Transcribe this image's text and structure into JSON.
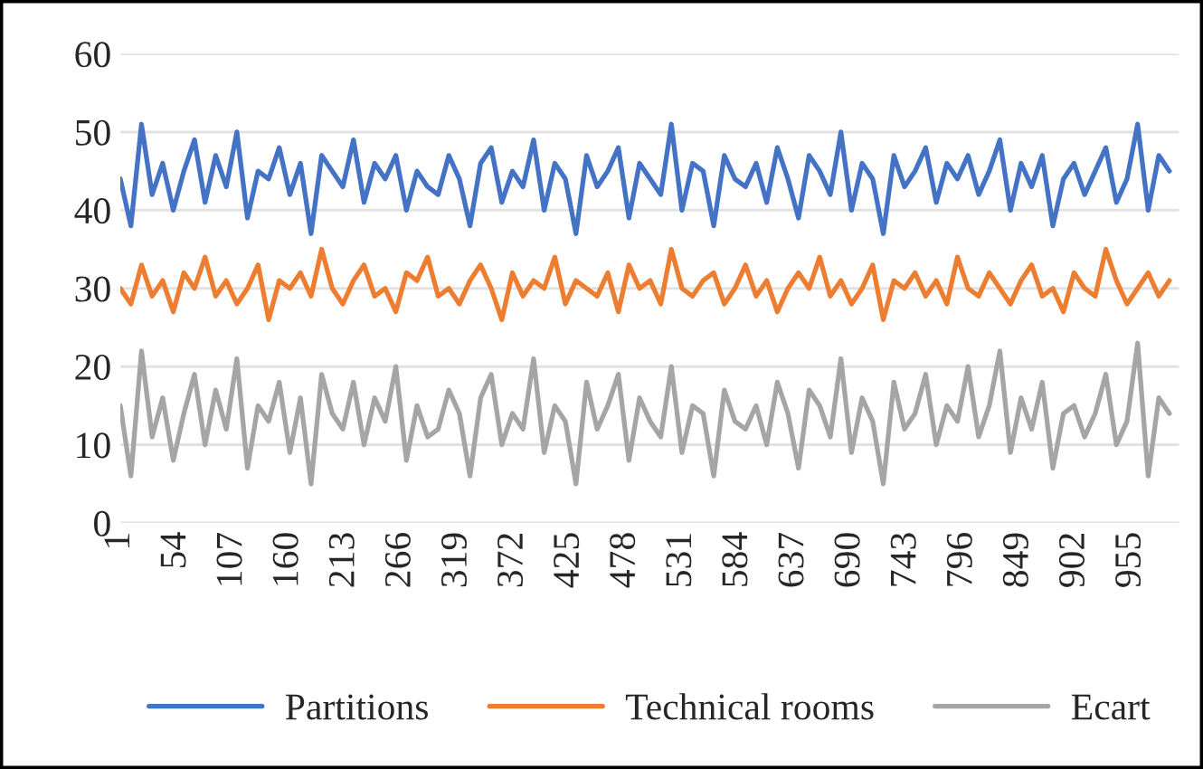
{
  "chart_data": {
    "type": "line",
    "x": [
      1,
      11,
      21,
      31,
      41,
      51,
      61,
      71,
      81,
      91,
      101,
      111,
      121,
      131,
      141,
      151,
      161,
      171,
      181,
      191,
      201,
      211,
      221,
      231,
      241,
      251,
      261,
      271,
      281,
      291,
      301,
      311,
      321,
      331,
      341,
      351,
      361,
      371,
      381,
      391,
      401,
      411,
      421,
      431,
      441,
      451,
      461,
      471,
      481,
      491,
      501,
      511,
      521,
      531,
      541,
      551,
      561,
      571,
      581,
      591,
      601,
      611,
      621,
      631,
      641,
      651,
      661,
      671,
      681,
      691,
      701,
      711,
      721,
      731,
      741,
      751,
      761,
      771,
      781,
      791,
      801,
      811,
      821,
      831,
      841,
      851,
      861,
      871,
      881,
      891,
      901,
      911,
      921,
      931,
      941,
      951,
      961,
      971,
      981,
      991
    ],
    "series": [
      {
        "name": "Partitions",
        "color": "#4472c4",
        "values": [
          44,
          38,
          51,
          42,
          46,
          40,
          45,
          49,
          41,
          47,
          43,
          50,
          39,
          45,
          44,
          48,
          42,
          46,
          37,
          47,
          45,
          43,
          49,
          41,
          46,
          44,
          47,
          40,
          45,
          43,
          42,
          47,
          44,
          38,
          46,
          48,
          41,
          45,
          43,
          49,
          40,
          46,
          44,
          37,
          47,
          43,
          45,
          48,
          39,
          46,
          44,
          42,
          51,
          40,
          46,
          45,
          38,
          47,
          44,
          43,
          46,
          41,
          48,
          44,
          39,
          47,
          45,
          42,
          50,
          40,
          46,
          44,
          37,
          47,
          43,
          45,
          48,
          41,
          46,
          44,
          47,
          42,
          45,
          49,
          40,
          46,
          43,
          47,
          38,
          44,
          46,
          42,
          45,
          48,
          41,
          44,
          51,
          40,
          47,
          45
        ]
      },
      {
        "name": "Technical rooms",
        "color": "#ed7d31",
        "values": [
          30,
          28,
          33,
          29,
          31,
          27,
          32,
          30,
          34,
          29,
          31,
          28,
          30,
          33,
          26,
          31,
          30,
          32,
          29,
          35,
          30,
          28,
          31,
          33,
          29,
          30,
          27,
          32,
          31,
          34,
          29,
          30,
          28,
          31,
          33,
          30,
          26,
          32,
          29,
          31,
          30,
          34,
          28,
          31,
          30,
          29,
          32,
          27,
          33,
          30,
          31,
          28,
          35,
          30,
          29,
          31,
          32,
          28,
          30,
          33,
          29,
          31,
          27,
          30,
          32,
          30,
          34,
          29,
          31,
          28,
          30,
          33,
          26,
          31,
          30,
          32,
          29,
          31,
          28,
          34,
          30,
          29,
          32,
          30,
          28,
          31,
          33,
          29,
          30,
          27,
          32,
          30,
          29,
          35,
          31,
          28,
          30,
          32,
          29,
          31
        ]
      },
      {
        "name": "Ecart",
        "color": "#a5a5a5",
        "values": [
          15,
          6,
          22,
          11,
          16,
          8,
          14,
          19,
          10,
          17,
          12,
          21,
          7,
          15,
          13,
          18,
          9,
          16,
          5,
          19,
          14,
          12,
          18,
          10,
          16,
          13,
          20,
          8,
          15,
          11,
          12,
          17,
          14,
          6,
          16,
          19,
          10,
          14,
          12,
          21,
          9,
          15,
          13,
          5,
          18,
          12,
          15,
          19,
          8,
          16,
          13,
          11,
          20,
          9,
          15,
          14,
          6,
          17,
          13,
          12,
          15,
          10,
          18,
          14,
          7,
          17,
          15,
          11,
          21,
          9,
          16,
          13,
          5,
          18,
          12,
          14,
          19,
          10,
          15,
          13,
          20,
          11,
          15,
          22,
          9,
          16,
          12,
          18,
          7,
          14,
          15,
          11,
          14,
          19,
          10,
          13,
          23,
          6,
          16,
          14
        ]
      }
    ],
    "xlim": [
      1,
      1000
    ],
    "xticks": [
      1,
      54,
      107,
      160,
      213,
      266,
      319,
      372,
      425,
      478,
      531,
      584,
      637,
      690,
      743,
      796,
      849,
      902,
      955
    ],
    "ylim": [
      0,
      60
    ],
    "yticks": [
      0,
      10,
      20,
      30,
      40,
      50,
      60
    ],
    "grid": "y",
    "legend": "bottom",
    "line_style": "solid"
  }
}
